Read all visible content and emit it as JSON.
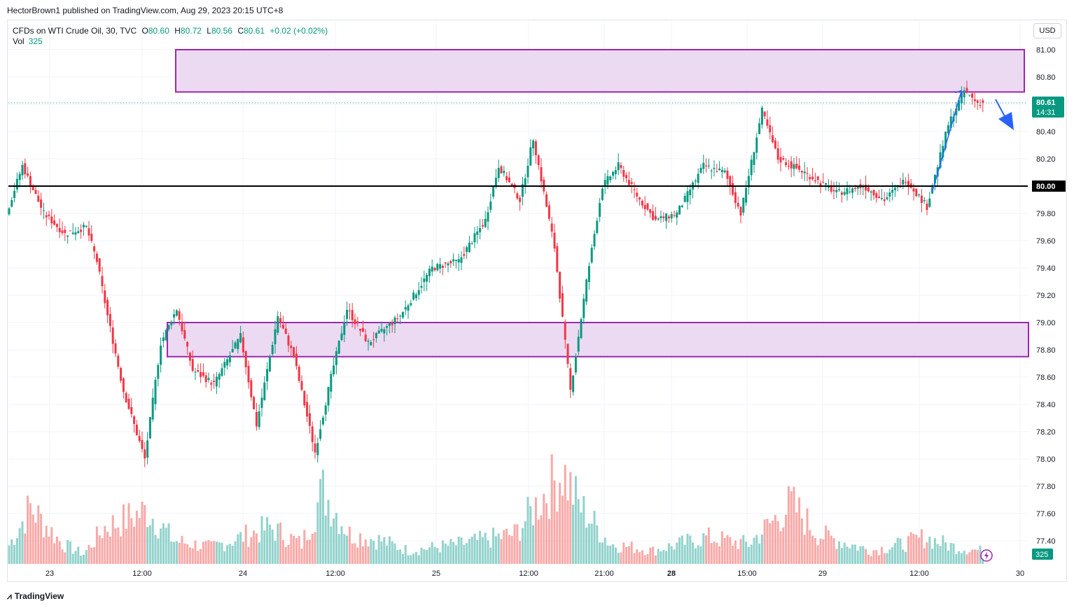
{
  "header": {
    "publisher": "HectorBrown1 published on TradingView.com, Aug 29, 2023 20:15 UTC+8"
  },
  "legend": {
    "symbol": "CFDs on WTI Crude Oil, 30, TVC",
    "open_label": "O",
    "open": "80.60",
    "high_label": "H",
    "high": "80.72",
    "low_label": "L",
    "low": "80.56",
    "close_label": "C",
    "close": "80.61",
    "change": "+0.02 (+0.02%)",
    "volume_label": "Vol",
    "volume": "325"
  },
  "currency_button": "USD",
  "footer": {
    "brand": "TradingView",
    "logo_icon": "tradingview-logo-icon"
  },
  "colors": {
    "up": "#089981",
    "down": "#f23645",
    "zone_fill": "#e9d3f0",
    "zone_border": "#9c27b0",
    "arrow": "#2962ff",
    "level": "#000000"
  },
  "chart_data": {
    "type": "candlestick",
    "symbol": "CFDs on WTI Crude Oil, 30, TVC",
    "x_tick_labels": [
      "23",
      "12:00",
      "24",
      "12:00",
      "25",
      "12:00",
      "21:00",
      "28",
      "15:00",
      "29",
      "12:00",
      "30"
    ],
    "y_tick_labels": [
      "81.00",
      "80.80",
      "80.60",
      "80.40",
      "80.20",
      "80.00",
      "79.80",
      "79.60",
      "79.40",
      "79.20",
      "79.00",
      "78.80",
      "78.60",
      "78.40",
      "78.20",
      "78.00",
      "77.80",
      "77.60",
      "77.40"
    ],
    "y_ticks": [
      81.0,
      80.8,
      80.6,
      80.4,
      80.2,
      80.0,
      79.8,
      79.6,
      79.4,
      79.2,
      79.0,
      78.8,
      78.6,
      78.4,
      78.2,
      78.0,
      77.8,
      77.6,
      77.4
    ],
    "ylim": [
      77.22,
      81.22
    ],
    "last_price_label": "80.61",
    "countdown": "14:31",
    "horizontal_level": 80.0,
    "horizontal_level_label": "80.00",
    "volume_label": "325",
    "zones": [
      {
        "name": "resistance-zone",
        "top": 81.0,
        "bottom": 80.69
      },
      {
        "name": "support-zone",
        "top": 79.0,
        "bottom": 78.75
      }
    ],
    "path": [
      [
        0,
        79.8
      ],
      [
        6,
        80.15
      ],
      [
        14,
        79.8
      ],
      [
        22,
        79.65
      ],
      [
        30,
        79.7
      ],
      [
        34,
        79.45
      ],
      [
        38,
        79.05
      ],
      [
        44,
        78.5
      ],
      [
        52,
        78.0
      ],
      [
        58,
        78.85
      ],
      [
        64,
        79.1
      ],
      [
        70,
        78.65
      ],
      [
        78,
        78.55
      ],
      [
        88,
        78.9
      ],
      [
        94,
        78.25
      ],
      [
        102,
        79.05
      ],
      [
        108,
        78.75
      ],
      [
        116,
        78.05
      ],
      [
        122,
        78.6
      ],
      [
        128,
        79.1
      ],
      [
        136,
        78.85
      ],
      [
        148,
        79.05
      ],
      [
        160,
        79.4
      ],
      [
        170,
        79.45
      ],
      [
        180,
        79.75
      ],
      [
        185,
        80.15
      ],
      [
        193,
        79.9
      ],
      [
        198,
        80.35
      ],
      [
        206,
        79.55
      ],
      [
        212,
        78.5
      ],
      [
        218,
        79.3
      ],
      [
        224,
        80.0
      ],
      [
        230,
        80.15
      ],
      [
        238,
        79.9
      ],
      [
        244,
        79.75
      ],
      [
        252,
        79.8
      ],
      [
        262,
        80.15
      ],
      [
        270,
        80.1
      ],
      [
        276,
        79.8
      ],
      [
        284,
        80.55
      ],
      [
        290,
        80.2
      ],
      [
        300,
        80.1
      ],
      [
        312,
        79.95
      ],
      [
        322,
        80.0
      ],
      [
        330,
        79.9
      ],
      [
        338,
        80.05
      ],
      [
        346,
        79.85
      ],
      [
        354,
        80.45
      ],
      [
        360,
        80.7
      ],
      [
        365,
        80.61
      ]
    ],
    "volume_path": [
      [
        0,
        28
      ],
      [
        8,
        85
      ],
      [
        20,
        30
      ],
      [
        28,
        15
      ],
      [
        36,
        55
      ],
      [
        52,
        80
      ],
      [
        62,
        35
      ],
      [
        76,
        25
      ],
      [
        98,
        55
      ],
      [
        110,
        30
      ],
      [
        118,
        110
      ],
      [
        128,
        45
      ],
      [
        140,
        35
      ],
      [
        150,
        20
      ],
      [
        170,
        30
      ],
      [
        190,
        45
      ],
      [
        208,
        140
      ],
      [
        214,
        90
      ],
      [
        226,
        30
      ],
      [
        242,
        20
      ],
      [
        262,
        40
      ],
      [
        278,
        30
      ],
      [
        294,
        90
      ],
      [
        304,
        45
      ],
      [
        324,
        20
      ],
      [
        336,
        30
      ],
      [
        344,
        40
      ],
      [
        356,
        25
      ],
      [
        365,
        20
      ]
    ],
    "annotations": [
      {
        "type": "arrow",
        "direction": "up",
        "from_index": 347,
        "to_index": 358
      },
      {
        "type": "arrow",
        "direction": "down",
        "after_index": 365
      }
    ]
  }
}
